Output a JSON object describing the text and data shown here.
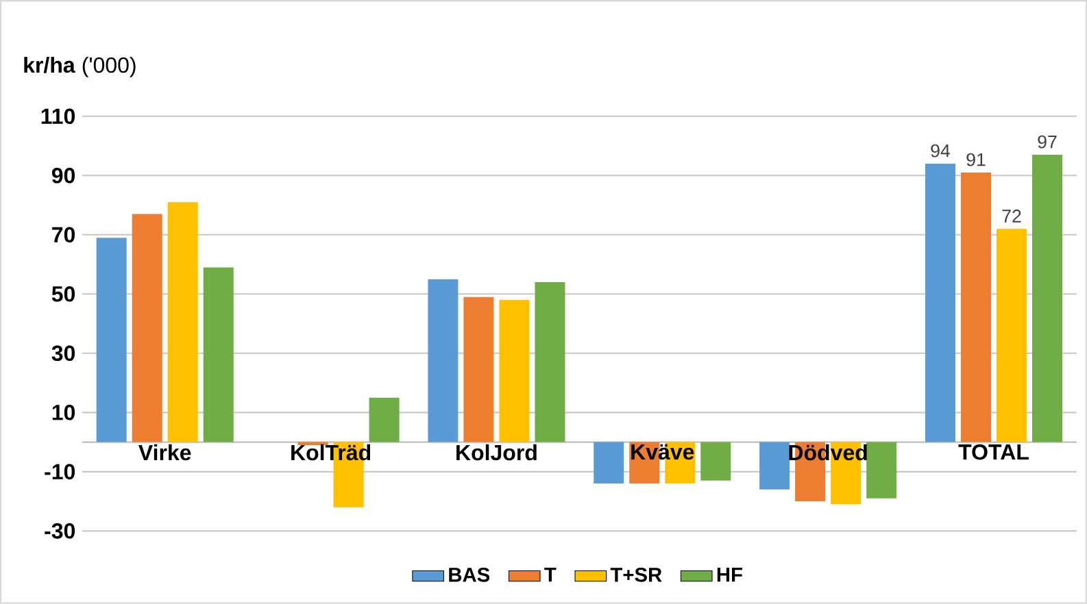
{
  "chart_data": {
    "type": "bar",
    "title": "**kr/ha** ('000)",
    "categories": [
      "Virke",
      "KolTräd",
      "KolJord",
      "Kväve",
      "Dödved",
      "TOTAL"
    ],
    "series": [
      {
        "name": "BAS",
        "color": "#5b9bd5",
        "values": [
          69,
          0,
          55,
          -14,
          -16,
          94
        ],
        "value_labels": [
          null,
          null,
          null,
          null,
          null,
          "94"
        ]
      },
      {
        "name": "T",
        "color": "#ed7d31",
        "values": [
          77,
          -1,
          49,
          -14,
          -20,
          91
        ],
        "value_labels": [
          null,
          null,
          null,
          null,
          null,
          "91"
        ]
      },
      {
        "name": "T+SR",
        "color": "#ffc000",
        "values": [
          81,
          -22,
          48,
          -14,
          -21,
          72
        ],
        "value_labels": [
          null,
          null,
          null,
          null,
          null,
          "72"
        ]
      },
      {
        "name": "HF",
        "color": "#70ad47",
        "values": [
          59,
          15,
          54,
          -13,
          -19,
          97
        ],
        "value_labels": [
          null,
          null,
          null,
          null,
          null,
          "97"
        ]
      }
    ],
    "ylim": [
      -30,
      110
    ],
    "yticks": [
      -30,
      -10,
      10,
      30,
      50,
      70,
      90,
      110
    ],
    "grid": "y",
    "legend": "bottom"
  }
}
